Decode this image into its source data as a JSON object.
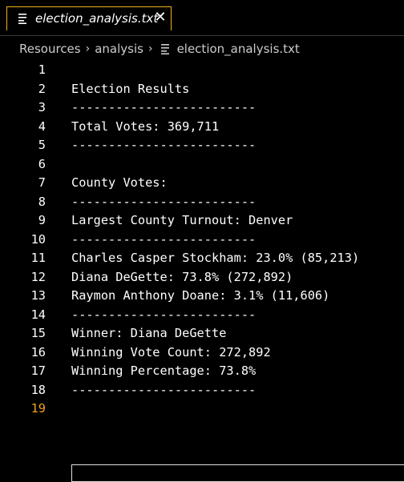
{
  "tab": {
    "title": "election_analysis.txt",
    "close_glyph": "✕",
    "icon": "file-lines-icon"
  },
  "breadcrumb": {
    "items": [
      "Resources",
      "analysis",
      "election_analysis.txt"
    ],
    "separator": "›"
  },
  "editor": {
    "active_line": 19,
    "lines": [
      {
        "n": "1",
        "text": ""
      },
      {
        "n": "2",
        "text": "Election Results"
      },
      {
        "n": "3",
        "text": "-------------------------"
      },
      {
        "n": "4",
        "text": "Total Votes: 369,711"
      },
      {
        "n": "5",
        "text": "-------------------------"
      },
      {
        "n": "6",
        "text": ""
      },
      {
        "n": "7",
        "text": "County Votes:"
      },
      {
        "n": "8",
        "text": "-------------------------"
      },
      {
        "n": "9",
        "text": "Largest County Turnout: Denver"
      },
      {
        "n": "10",
        "text": "-------------------------"
      },
      {
        "n": "11",
        "text": "Charles Casper Stockham: 23.0% (85,213)"
      },
      {
        "n": "12",
        "text": "Diana DeGette: 73.8% (272,892)"
      },
      {
        "n": "13",
        "text": "Raymon Anthony Doane: 3.1% (11,606)"
      },
      {
        "n": "14",
        "text": "-------------------------"
      },
      {
        "n": "15",
        "text": "Winner: Diana DeGette"
      },
      {
        "n": "16",
        "text": "Winning Vote Count: 272,892"
      },
      {
        "n": "17",
        "text": "Winning Percentage: 73.8%"
      },
      {
        "n": "18",
        "text": "-------------------------"
      },
      {
        "n": "19",
        "text": ""
      }
    ]
  },
  "colors": {
    "background": "#000000",
    "tab_border": "#f0b020",
    "active_line_number": "#f0a020",
    "text": "#ffffff"
  }
}
